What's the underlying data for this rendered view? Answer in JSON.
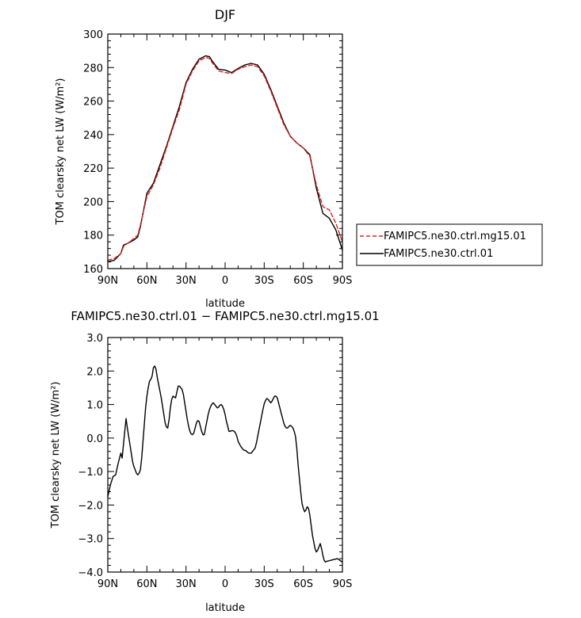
{
  "chart_data": [
    {
      "type": "line",
      "title": "DJF",
      "xlabel": "latitude",
      "ylabel": "TOM clearsky net LW (W/m²)",
      "xlim": [
        -90,
        90
      ],
      "ylim": [
        160,
        300
      ],
      "x_ticks": [
        -90,
        -60,
        -30,
        0,
        30,
        60,
        90
      ],
      "x_tick_labels": [
        "90N",
        "60N",
        "30N",
        "0",
        "30S",
        "60S",
        "90S"
      ],
      "y_ticks": [
        160,
        180,
        200,
        220,
        240,
        260,
        280,
        300
      ],
      "y_tick_labels": [
        "160",
        "180",
        "200",
        "220",
        "240",
        "260",
        "280",
        "300"
      ],
      "legend_position": "right",
      "x": [
        -90,
        -85,
        -80,
        -78,
        -75,
        -70,
        -67,
        -65,
        -60,
        -55,
        -50,
        -45,
        -40,
        -35,
        -30,
        -25,
        -20,
        -15,
        -12,
        -10,
        -5,
        0,
        5,
        10,
        15,
        20,
        25,
        30,
        35,
        40,
        45,
        50,
        55,
        60,
        65,
        70,
        75,
        80,
        85,
        90
      ],
      "series": [
        {
          "name": "FAMIPC5.ne30.ctrl.mg15.01",
          "color": "#e02020",
          "dash": "dashed",
          "values": [
            165,
            166,
            169,
            173,
            175,
            178,
            180,
            186,
            203,
            210,
            220,
            232,
            244,
            255,
            270,
            278,
            284,
            286,
            285.5,
            283,
            278,
            277,
            276.5,
            279,
            280.5,
            281.5,
            280.5,
            275,
            266,
            256,
            246,
            239,
            235,
            232,
            227,
            210,
            197,
            195,
            187,
            176
          ]
        },
        {
          "name": "FAMIPC5.ne30.ctrl.01",
          "color": "#000000",
          "dash": "solid",
          "values": [
            164,
            165,
            169,
            174,
            175,
            177,
            179,
            185,
            205,
            211,
            222,
            233,
            245,
            257,
            271,
            279,
            285,
            287,
            286.5,
            284,
            279,
            278.5,
            277,
            279.5,
            281.5,
            282.5,
            281.5,
            276,
            267,
            257,
            247,
            239,
            235,
            232,
            228,
            208,
            193,
            190,
            183,
            171
          ]
        }
      ]
    },
    {
      "type": "line",
      "title": "FAMIPC5.ne30.ctrl.01 − FAMIPC5.ne30.ctrl.mg15.01",
      "xlabel": "latitude",
      "ylabel": "TOM clearsky net LW (W/m²)",
      "xlim": [
        -90,
        90
      ],
      "ylim": [
        -4,
        3
      ],
      "x_ticks": [
        -90,
        -60,
        -30,
        0,
        30,
        60,
        90
      ],
      "x_tick_labels": [
        "90N",
        "60N",
        "30N",
        "0",
        "30S",
        "60S",
        "90S"
      ],
      "y_ticks": [
        -4,
        -3,
        -2,
        -1,
        0,
        1,
        2,
        3
      ],
      "y_tick_labels": [
        "−4.0",
        "−3.0",
        "−2.0",
        "−1.0",
        "0.0",
        "1.0",
        "2.0",
        "3.0"
      ],
      "x": [
        -90,
        -88,
        -86,
        -84,
        -82,
        -80,
        -79,
        -78,
        -77,
        -76,
        -75,
        -74,
        -73,
        -72,
        -71,
        -70,
        -69,
        -68,
        -67,
        -66,
        -65,
        -64,
        -63,
        -62,
        -61,
        -60,
        -59,
        -58,
        -57,
        -56,
        -55,
        -54,
        -53,
        -52,
        -51,
        -50,
        -49,
        -48,
        -47,
        -46,
        -45,
        -44,
        -43,
        -42,
        -41,
        -40,
        -38,
        -36,
        -35,
        -34,
        -33,
        -32,
        -31,
        -30,
        -29,
        -28,
        -27,
        -26,
        -25,
        -24,
        -23,
        -22,
        -21,
        -20,
        -19,
        -18,
        -17,
        -16,
        -15,
        -14,
        -13,
        -12,
        -11,
        -10,
        -9,
        -8,
        -7,
        -6,
        -5,
        -4,
        -3,
        -2,
        -1,
        0,
        1,
        2,
        3,
        4,
        5,
        6,
        7,
        8,
        9,
        10,
        12,
        14,
        16,
        18,
        20,
        21,
        22,
        23,
        24,
        25,
        26,
        27,
        28,
        29,
        30,
        31,
        32,
        33,
        34,
        35,
        36,
        37,
        38,
        39,
        40,
        41,
        42,
        43,
        44,
        45,
        46,
        47,
        48,
        49,
        50,
        51,
        52,
        53,
        54,
        55,
        56,
        57,
        58,
        59,
        60,
        61,
        62,
        63,
        64,
        65,
        66,
        67,
        68,
        69,
        70,
        71,
        72,
        73,
        74,
        75,
        76,
        77,
        78,
        79,
        80,
        81,
        82,
        83,
        84,
        85,
        86,
        87,
        88,
        89,
        90
      ],
      "series": [
        {
          "name": "",
          "color": "#000000",
          "values": [
            -1.75,
            -1.4,
            -1.15,
            -1.1,
            -0.75,
            -0.45,
            -0.6,
            -0.2,
            0.2,
            0.58,
            0.3,
            0.05,
            -0.2,
            -0.45,
            -0.7,
            -0.85,
            -0.95,
            -1.05,
            -1.1,
            -1.05,
            -0.95,
            -0.6,
            -0.1,
            0.4,
            0.9,
            1.25,
            1.5,
            1.7,
            1.75,
            1.85,
            2.1,
            2.15,
            2.05,
            1.8,
            1.6,
            1.4,
            1.2,
            0.95,
            0.7,
            0.45,
            0.33,
            0.3,
            0.55,
            0.9,
            1.15,
            1.25,
            1.2,
            1.55,
            1.55,
            1.5,
            1.45,
            1.3,
            1.05,
            0.8,
            0.55,
            0.35,
            0.2,
            0.12,
            0.1,
            0.15,
            0.3,
            0.45,
            0.52,
            0.5,
            0.35,
            0.2,
            0.1,
            0.1,
            0.3,
            0.5,
            0.7,
            0.85,
            0.95,
            1.02,
            1.05,
            1.0,
            0.95,
            0.9,
            0.92,
            0.98,
            1.0,
            0.95,
            0.85,
            0.7,
            0.5,
            0.35,
            0.2,
            0.2,
            0.22,
            0.22,
            0.2,
            0.15,
            0.05,
            -0.1,
            -0.25,
            -0.35,
            -0.38,
            -0.45,
            -0.45,
            -0.4,
            -0.35,
            -0.3,
            -0.15,
            0.05,
            0.25,
            0.45,
            0.65,
            0.85,
            1.02,
            1.12,
            1.18,
            1.15,
            1.1,
            1.05,
            1.1,
            1.18,
            1.25,
            1.25,
            1.2,
            1.05,
            0.9,
            0.75,
            0.6,
            0.45,
            0.35,
            0.3,
            0.3,
            0.35,
            0.38,
            0.35,
            0.3,
            0.2,
            0.05,
            -0.3,
            -0.8,
            -1.2,
            -1.6,
            -1.95,
            -2.1,
            -2.2,
            -2.15,
            -2.05,
            -2.1,
            -2.3,
            -2.6,
            -2.9,
            -3.1,
            -3.3,
            -3.4,
            -3.35,
            -3.25,
            -3.15,
            -3.3,
            -3.5,
            -3.65,
            -3.7,
            -3.68,
            -3.67,
            -3.66,
            -3.65,
            -3.64,
            -3.63,
            -3.62,
            -3.61,
            -3.6,
            -3.62,
            -3.65,
            -3.68,
            -3.7
          ]
        }
      ]
    }
  ]
}
